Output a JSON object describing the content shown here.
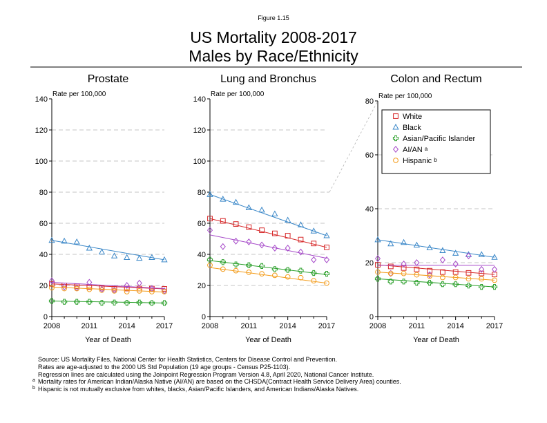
{
  "figure_label": "Figure 1.15",
  "title_line1": "US Mortality 2008-2017",
  "title_line2": "Males by Race/Ethnicity",
  "footnotes": {
    "source": "Source:  US Mortality Files, National Center for Health Statistics, Centers for Disease Control and Prevention.",
    "line2": "Rates are age-adjusted to the 2000 US Std Population (19 age groups - Census P25-1103).",
    "line3": "Regression lines are calculated using the Joinpoint Regression Program Version 4.8, April 2020, National Cancer Institute.",
    "a_mark": "a",
    "a_text": "Mortality rates for American Indian/Alaska Native (AI/AN) are based on the CHSDA(Contract Health Service Delivery Area) counties.",
    "b_mark": "b",
    "b_text": "Hispanic is not mutually exclusive from whites, blacks, Asian/Pacific Islanders, and American Indians/Alaska Natives."
  },
  "legend": [
    {
      "key": "white",
      "label": "White",
      "sup": ""
    },
    {
      "key": "black",
      "label": "Black",
      "sup": ""
    },
    {
      "key": "api",
      "label": "Asian/Pacific Islander",
      "sup": ""
    },
    {
      "key": "aian",
      "label": "AI/AN",
      "sup": "a"
    },
    {
      "key": "hispanic",
      "label": "Hispanic",
      "sup": "b"
    }
  ],
  "series_style": {
    "white": {
      "color": "#d62728",
      "marker": "square"
    },
    "black": {
      "color": "#3a87c8",
      "marker": "triangle"
    },
    "api": {
      "color": "#2ca02c",
      "marker": "plus"
    },
    "aian": {
      "color": "#a64ac9",
      "marker": "diamond"
    },
    "hispanic": {
      "color": "#f39c1b",
      "marker": "circle"
    }
  },
  "chart_data": [
    {
      "type": "scatter",
      "title": "Prostate",
      "ylabel": "Rate per 100,000",
      "xlabel": "Year of Death",
      "xlim": [
        2008,
        2017
      ],
      "ylim": [
        0,
        140
      ],
      "xticks": [
        2008,
        2011,
        2014,
        2017
      ],
      "yticks": [
        0,
        20,
        40,
        60,
        80,
        100,
        120,
        140
      ],
      "grid": true,
      "x": [
        2008,
        2009,
        2010,
        2011,
        2012,
        2013,
        2014,
        2015,
        2016,
        2017
      ],
      "series": [
        {
          "key": "white",
          "values": [
            21.0,
            20.0,
            19.5,
            19.0,
            18.5,
            18.0,
            18.0,
            18.0,
            18.0,
            17.8
          ],
          "trend": [
            21.0,
            17.8
          ]
        },
        {
          "key": "black",
          "values": [
            49.0,
            48.5,
            48.0,
            44.0,
            41.5,
            39.0,
            38.0,
            37.5,
            38.0,
            36.5
          ],
          "trend": [
            49.0,
            36.5
          ]
        },
        {
          "key": "api",
          "values": [
            10.0,
            9.5,
            9.5,
            9.5,
            8.8,
            9.0,
            8.8,
            9.0,
            8.7,
            8.7
          ],
          "trend": [
            10.0,
            8.7
          ]
        },
        {
          "key": "aian",
          "values": [
            23.0,
            19.0,
            18.5,
            22.0,
            17.5,
            17.0,
            20.0,
            21.5,
            18.0,
            16.5
          ],
          "trend": [
            22.0,
            18.0
          ]
        },
        {
          "key": "hispanic",
          "values": [
            18.5,
            18.0,
            18.0,
            17.5,
            17.0,
            16.5,
            16.0,
            16.5,
            16.0,
            16.0
          ],
          "trend": [
            19.0,
            15.8
          ]
        }
      ]
    },
    {
      "type": "scatter",
      "title": "Lung and Bronchus",
      "ylabel": "Rate per 100,000",
      "xlabel": "Year of Death",
      "xlim": [
        2008,
        2017
      ],
      "ylim": [
        0,
        140
      ],
      "xticks": [
        2008,
        2011,
        2014,
        2017
      ],
      "yticks": [
        0,
        20,
        40,
        60,
        80,
        100,
        120,
        140
      ],
      "grid": true,
      "x": [
        2008,
        2009,
        2010,
        2011,
        2012,
        2013,
        2014,
        2015,
        2016,
        2017
      ],
      "series": [
        {
          "key": "white",
          "values": [
            63.0,
            61.5,
            59.5,
            57.5,
            55.5,
            53.5,
            52.0,
            49.5,
            47.0,
            44.5
          ],
          "trend": [
            63.0,
            44.5
          ]
        },
        {
          "key": "black",
          "values": [
            78.5,
            75.5,
            73.5,
            70.0,
            68.5,
            66.0,
            62.0,
            59.0,
            55.0,
            52.0
          ],
          "trend": [
            78.5,
            52.0
          ]
        },
        {
          "key": "api",
          "values": [
            36.5,
            35.0,
            33.5,
            33.0,
            32.5,
            30.5,
            30.0,
            29.5,
            28.0,
            27.5
          ],
          "trend": [
            36.0,
            27.0
          ]
        },
        {
          "key": "aian",
          "values": [
            55.5,
            45.0,
            48.5,
            48.0,
            46.0,
            44.0,
            44.0,
            41.5,
            36.5,
            36.5
          ],
          "trend": [
            52.5,
            37.5
          ]
        },
        {
          "key": "hispanic",
          "values": [
            33.0,
            30.5,
            29.5,
            28.5,
            27.5,
            26.5,
            25.5,
            25.0,
            23.0,
            21.5
          ],
          "trend": [
            31.5,
            21.5
          ]
        }
      ]
    },
    {
      "type": "scatter",
      "title": "Colon and Rectum",
      "ylabel": "Rate per 100,000",
      "xlabel": "Year of Death",
      "xlim": [
        2008,
        2017
      ],
      "ylim": [
        0,
        80
      ],
      "xticks": [
        2008,
        2011,
        2014,
        2017
      ],
      "yticks": [
        0,
        20,
        40,
        60,
        80
      ],
      "grid": true,
      "legend_position": "top-right",
      "x": [
        2008,
        2009,
        2010,
        2011,
        2012,
        2013,
        2014,
        2015,
        2016,
        2017
      ],
      "series": [
        {
          "key": "white",
          "values": [
            19.2,
            18.6,
            18.0,
            17.5,
            17.0,
            16.5,
            16.5,
            16.2,
            16.0,
            15.6
          ],
          "trend": [
            19.2,
            15.6
          ]
        },
        {
          "key": "black",
          "values": [
            28.5,
            27.0,
            27.5,
            26.5,
            25.5,
            24.5,
            23.5,
            23.0,
            23.0,
            22.0
          ],
          "trend": [
            28.5,
            22.0
          ]
        },
        {
          "key": "api",
          "values": [
            14.0,
            13.0,
            13.0,
            12.5,
            12.5,
            12.0,
            12.0,
            11.5,
            11.0,
            11.0
          ],
          "trend": [
            14.0,
            11.0
          ]
        },
        {
          "key": "aian",
          "values": [
            21.5,
            16.0,
            19.5,
            20.0,
            15.5,
            21.0,
            19.5,
            22.5,
            17.5,
            17.5
          ],
          "trend": [
            19.0,
            19.0
          ]
        },
        {
          "key": "hispanic",
          "values": [
            16.5,
            16.0,
            16.0,
            15.5,
            15.0,
            14.5,
            14.5,
            14.0,
            14.0,
            13.5
          ],
          "trend": [
            16.5,
            13.5
          ]
        }
      ]
    }
  ]
}
